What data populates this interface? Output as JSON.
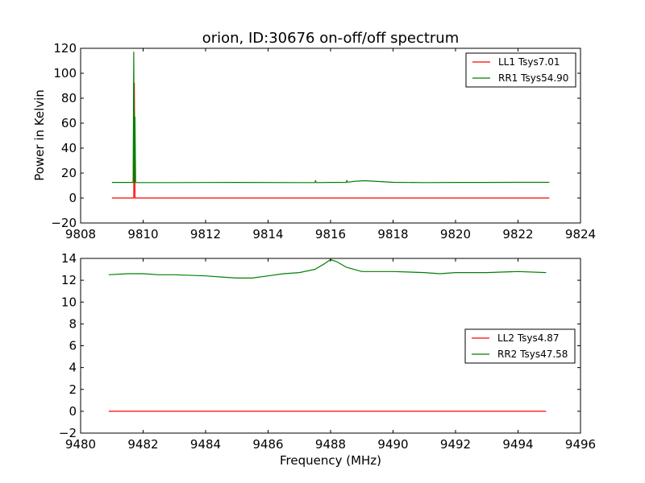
{
  "colors": {
    "ll": "#ff0000",
    "rr": "#008000",
    "axes": "#000000",
    "background": "#ffffff"
  },
  "chart_data": [
    {
      "type": "line",
      "title": "orion, ID:30676 on-off/off spectrum",
      "xlabel": "",
      "ylabel": "Power in Kelvin",
      "xlim": [
        9808,
        9824
      ],
      "ylim": [
        -20,
        120
      ],
      "xticks": [
        "9808",
        "9810",
        "9812",
        "9814",
        "9816",
        "9818",
        "9820",
        "9822",
        "9824"
      ],
      "yticks": [
        "−20",
        "0",
        "20",
        "40",
        "60",
        "80",
        "100",
        "120"
      ],
      "legend_position": "top-right",
      "series": [
        {
          "name": "LL1 Tsys7.01",
          "color": "#ff0000",
          "x": [
            9809.0,
            9809.6,
            9809.7,
            9809.72,
            9809.74,
            9809.8,
            9812.0,
            9815.0,
            9818.0,
            9821.0,
            9823.0
          ],
          "y": [
            0,
            0,
            0,
            92,
            0,
            0,
            0,
            0,
            0,
            0,
            0
          ]
        },
        {
          "name": "RR1 Tsys54.90",
          "color": "#008000",
          "x": [
            9809.0,
            9809.6,
            9809.68,
            9809.7,
            9809.72,
            9809.74,
            9809.76,
            9809.8,
            9811.0,
            9813.0,
            9815.0,
            9815.5,
            9815.52,
            9815.54,
            9816.0,
            9816.5,
            9816.52,
            9816.54,
            9816.8,
            9817.1,
            9817.5,
            9818.0,
            9819.0,
            9820.0,
            9821.0,
            9822.0,
            9823.0
          ],
          "y": [
            12.5,
            12.5,
            12.5,
            117,
            12.5,
            65,
            12.5,
            12.4,
            12.4,
            12.5,
            12.4,
            12.4,
            14,
            12.4,
            12.5,
            12.6,
            14.2,
            12.7,
            13.5,
            13.9,
            13.3,
            12.6,
            12.4,
            12.5,
            12.5,
            12.6,
            12.6
          ]
        }
      ]
    },
    {
      "type": "line",
      "title": "",
      "xlabel": "Frequency (MHz)",
      "ylabel": "",
      "xlim": [
        9480,
        9496
      ],
      "ylim": [
        -2,
        14
      ],
      "xticks": [
        "9480",
        "9482",
        "9484",
        "9486",
        "9488",
        "9490",
        "9492",
        "9494",
        "9496"
      ],
      "yticks": [
        "−2",
        "0",
        "2",
        "4",
        "6",
        "8",
        "10",
        "12",
        "14"
      ],
      "legend_position": "center-right",
      "series": [
        {
          "name": "LL2 Tsys4.87",
          "color": "#ff0000",
          "x": [
            9480.9,
            9484.0,
            9488.0,
            9492.0,
            9494.9
          ],
          "y": [
            0,
            0,
            0,
            0,
            0
          ]
        },
        {
          "name": "RR2 Tsys47.58",
          "color": "#008000",
          "x": [
            9480.9,
            9481.5,
            9482.0,
            9482.5,
            9483.0,
            9484.0,
            9484.5,
            9485.0,
            9485.5,
            9486.0,
            9486.5,
            9487.0,
            9487.5,
            9487.8,
            9488.0,
            9488.2,
            9488.5,
            9489.0,
            9489.5,
            9490.0,
            9491.0,
            9491.5,
            9492.0,
            9493.0,
            9494.0,
            9494.9
          ],
          "y": [
            12.5,
            12.6,
            12.6,
            12.5,
            12.5,
            12.4,
            12.3,
            12.2,
            12.2,
            12.4,
            12.6,
            12.7,
            13.0,
            13.5,
            13.9,
            13.7,
            13.2,
            12.8,
            12.8,
            12.8,
            12.7,
            12.6,
            12.7,
            12.7,
            12.8,
            12.7
          ]
        }
      ]
    }
  ]
}
